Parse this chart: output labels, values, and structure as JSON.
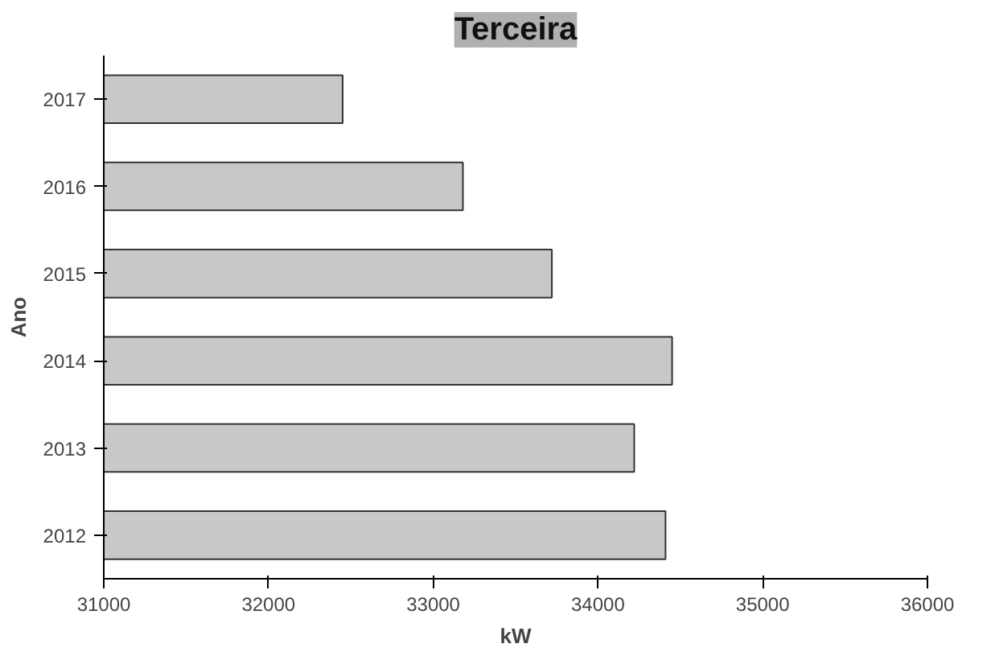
{
  "chart_data": {
    "type": "bar",
    "orientation": "horizontal",
    "title": "Terceira",
    "xlabel": "kW",
    "ylabel": "Ano",
    "categories": [
      "2017",
      "2016",
      "2015",
      "2014",
      "2013",
      "2012"
    ],
    "values": [
      32450,
      33180,
      33720,
      34450,
      34220,
      34410
    ],
    "color": "#c8c8c8",
    "xlim": [
      31000,
      36000
    ],
    "xticks": [
      31000,
      32000,
      33000,
      34000,
      35000,
      36000
    ],
    "grid": false
  }
}
